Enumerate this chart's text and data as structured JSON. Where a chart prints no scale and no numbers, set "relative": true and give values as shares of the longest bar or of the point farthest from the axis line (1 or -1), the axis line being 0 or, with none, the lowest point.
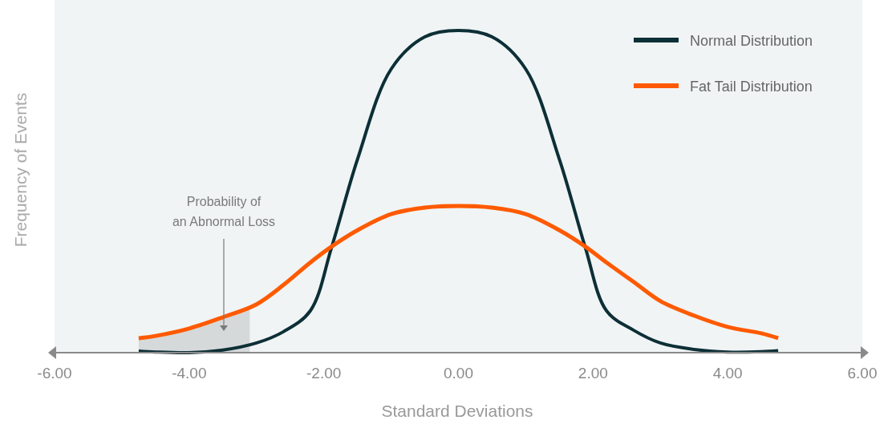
{
  "chart_data": {
    "type": "line",
    "relative": true,
    "xlabel": "Standard Deviations",
    "ylabel": "Frequency of Events",
    "xlim": [
      -6,
      6
    ],
    "xticks": [
      {
        "value": -6,
        "label": "-6.00"
      },
      {
        "value": -4,
        "label": "-4.00"
      },
      {
        "value": -2,
        "label": "-2.00"
      },
      {
        "value": 0,
        "label": "0.00"
      },
      {
        "value": 2,
        "label": "2.00"
      },
      {
        "value": 4,
        "label": "4.00"
      },
      {
        "value": 6,
        "label": "6.00"
      }
    ],
    "x": [
      -4.75,
      -4.5,
      -4,
      -3.5,
      -3,
      -2.6,
      -2.2,
      -1.88,
      -1.5,
      -1,
      -0.5,
      0,
      0.5,
      1,
      1.5,
      1.88,
      2.2,
      2.6,
      3,
      3.5,
      4,
      4.5,
      4.75
    ],
    "series": [
      {
        "type": "area",
        "color": "#d6d9da",
        "x": [
          -4.75,
          -4.5,
          -4,
          -3.5,
          -3.1
        ],
        "values": [
          0.045,
          0.052,
          0.075,
          0.11,
          0.14
        ]
      },
      {
        "name": "Normal Distribution",
        "color": "#0d2f36",
        "values": [
          0.005,
          0.002,
          0,
          0.008,
          0.03,
          0.065,
          0.13,
          0.33,
          0.6,
          0.88,
          0.98,
          1,
          0.98,
          0.88,
          0.6,
          0.33,
          0.13,
          0.07,
          0.03,
          0.01,
          0.002,
          0.003,
          0.006
        ]
      },
      {
        "name": "Fat Tail Distribution",
        "color": "#ff5a00",
        "values": [
          0.045,
          0.052,
          0.075,
          0.11,
          0.15,
          0.21,
          0.28,
          0.33,
          0.38,
          0.43,
          0.45,
          0.455,
          0.45,
          0.43,
          0.38,
          0.33,
          0.28,
          0.22,
          0.16,
          0.115,
          0.08,
          0.06,
          0.045
        ]
      }
    ],
    "annotations": [
      "Probability of an Abnormal Loss"
    ],
    "legend": "top right",
    "grid": false,
    "marker": "none",
    "line_style": "solid"
  }
}
